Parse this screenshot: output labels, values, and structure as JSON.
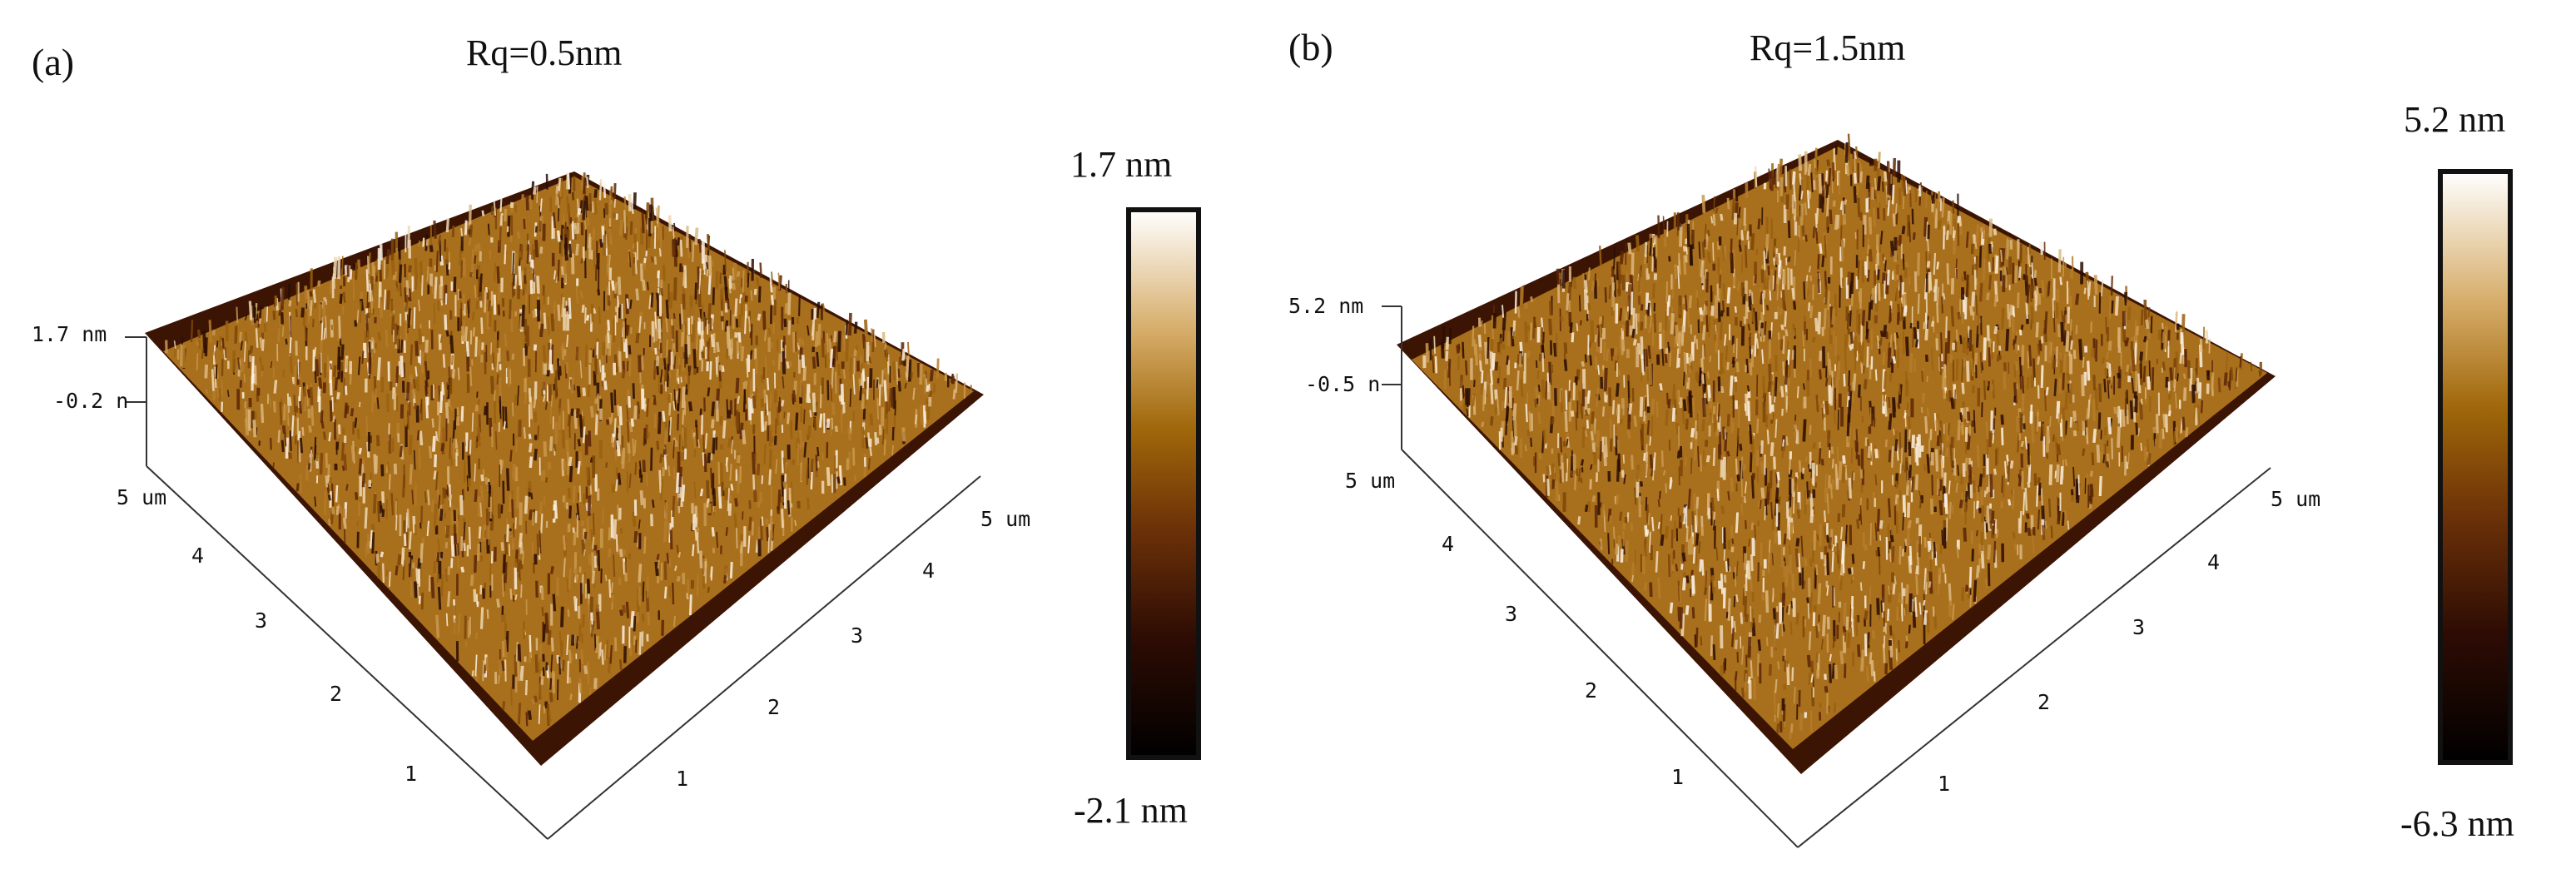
{
  "panels": [
    {
      "id": "a",
      "label": "(a)",
      "title": "Rq=0.5nm",
      "z_top": "1.7 nm",
      "z_mid": "-0.2 n",
      "z_max_label": "1.7 nm",
      "z_min_label": "-2.1 nm",
      "axis_max": "5 um",
      "x_ticks": [
        "1",
        "2",
        "3",
        "4"
      ],
      "y_ticks": [
        "1",
        "2",
        "3",
        "4"
      ],
      "colors": {
        "low": "#000000",
        "mid": "#a0670a",
        "high": "#ffffff"
      }
    },
    {
      "id": "b",
      "label": "(b)",
      "title": "Rq=1.5nm",
      "z_top": "5.2 nm",
      "z_mid": "-0.5 n",
      "z_max_label": "5.2 nm",
      "z_min_label": "-6.3 nm",
      "axis_max": "5 um",
      "x_ticks": [
        "1",
        "2",
        "3",
        "4"
      ],
      "y_ticks": [
        "1",
        "2",
        "3",
        "4"
      ],
      "colors": {
        "low": "#000000",
        "mid": "#a0670a",
        "high": "#ffffff"
      }
    }
  ]
}
